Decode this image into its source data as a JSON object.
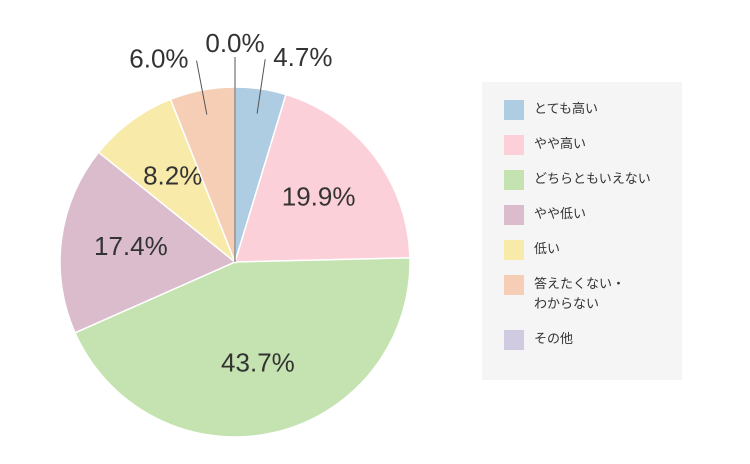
{
  "chart_data": {
    "type": "pie",
    "categories": [
      "とても高い",
      "やや高い",
      "どちらともいえない",
      "やや低い",
      "低い",
      "答えたくない・\nわからない",
      "その他"
    ],
    "values": [
      4.7,
      19.9,
      43.7,
      17.4,
      8.2,
      6.0,
      0.0
    ],
    "value_labels": [
      "4.7%",
      "19.9%",
      "43.7%",
      "17.4%",
      "8.2%",
      "6.0%",
      "0.0%"
    ],
    "colors": [
      "#aecde3",
      "#fcd0d9",
      "#c5e3b1",
      "#dbbccd",
      "#f8eaa8",
      "#f5ceb5",
      "#d0cbe1"
    ],
    "legend": "right"
  }
}
